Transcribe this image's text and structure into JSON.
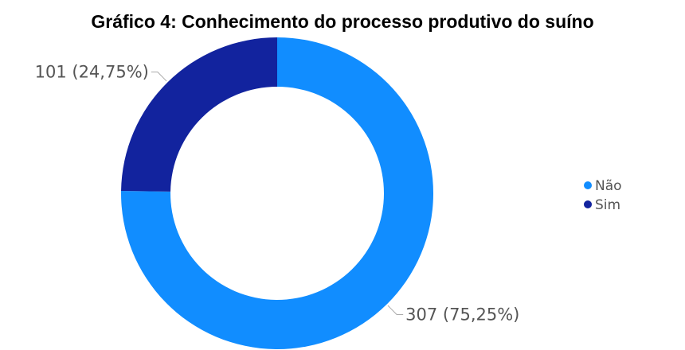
{
  "title": "Gráfico 4: Conhecimento do processo produtivo do suíno",
  "chart_data": {
    "type": "pie",
    "subtype": "donut",
    "title": "Gráfico 4: Conhecimento do processo produtivo do suíno",
    "categories": [
      "Não",
      "Sim"
    ],
    "values": [
      307,
      101
    ],
    "percentages": [
      "75,25%",
      "24,75%"
    ],
    "labels": [
      "307 (75,25%)",
      "101 (24,75%)"
    ],
    "colors": [
      "#118DFF",
      "#12239E"
    ],
    "legend": [
      "Não",
      "Sim"
    ],
    "legend_position": "right"
  }
}
